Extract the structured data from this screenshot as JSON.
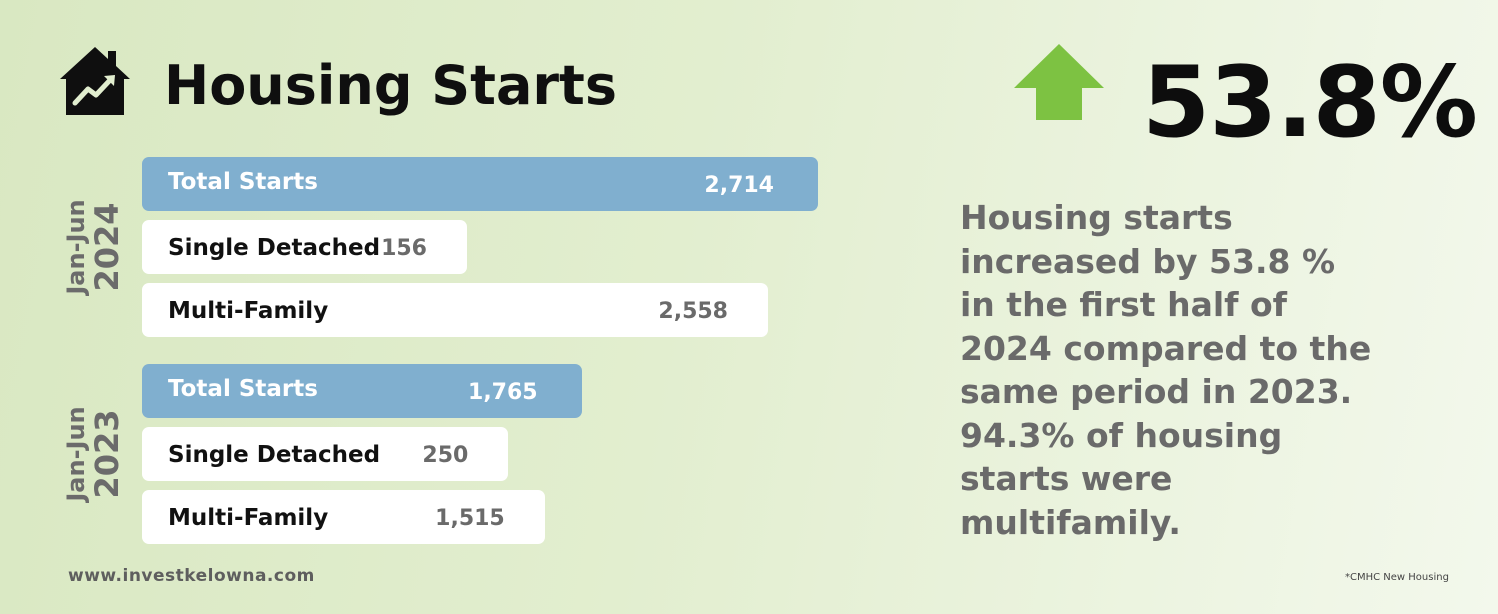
{
  "title": "Housing Starts",
  "headline": {
    "value": "53.8%",
    "direction": "up",
    "arrow_color": "#7dc242"
  },
  "description": "Housing starts increased by 53.8 % in the first half of 2024 compared to the same period in 2023. 94.3% of housing starts were multifamily.",
  "footer": {
    "website": "www.investkelowna.com",
    "source": "*CMHC New Housing"
  },
  "colors": {
    "total_bar": "#80afcf",
    "sub_bar": "#ffffff",
    "label_gray": "#6b6b6b"
  },
  "chart_data": {
    "type": "bar",
    "orientation": "horizontal",
    "groups": [
      {
        "period": "Jan-Jun",
        "year": "2024",
        "bars": [
          {
            "label": "Total Starts",
            "value": 2714,
            "display": "2,714",
            "kind": "total"
          },
          {
            "label": "Single Detached",
            "value": 156,
            "display": "156",
            "kind": "sub"
          },
          {
            "label": "Multi-Family",
            "value": 2558,
            "display": "2,558",
            "kind": "sub"
          }
        ]
      },
      {
        "period": "Jan-Jun",
        "year": "2023",
        "bars": [
          {
            "label": "Total Starts",
            "value": 1765,
            "display": "1,765",
            "kind": "total"
          },
          {
            "label": "Single Detached",
            "value": 250,
            "display": "250",
            "kind": "sub"
          },
          {
            "label": "Multi-Family",
            "value": 1515,
            "display": "1,515",
            "kind": "sub"
          }
        ]
      }
    ]
  }
}
